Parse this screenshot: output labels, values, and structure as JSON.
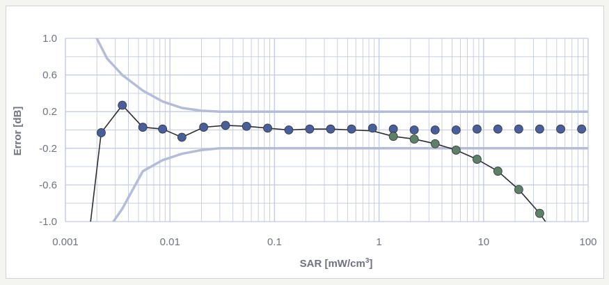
{
  "chart_data": {
    "type": "scatter",
    "title": "",
    "xlabel": "SAR [mW/cm",
    "xlabel_sup": "3",
    "xlabel_end": "]",
    "ylabel": "Error [dB]",
    "xscale": "log",
    "xlim": [
      0.001,
      100
    ],
    "ylim": [
      -1.0,
      1.0
    ],
    "grid": true,
    "legend": "none",
    "xticks": [
      {
        "v": 0.001,
        "label": "0.001"
      },
      {
        "v": 0.01,
        "label": "0.01"
      },
      {
        "v": 0.1,
        "label": "0.1"
      },
      {
        "v": 1,
        "label": "1"
      },
      {
        "v": 10,
        "label": "10"
      },
      {
        "v": 100,
        "label": "100"
      }
    ],
    "yticks": [
      {
        "v": 1.0,
        "label": "1.0"
      },
      {
        "v": 0.6,
        "label": "0.6"
      },
      {
        "v": 0.2,
        "label": "0.2"
      },
      {
        "v": -0.2,
        "label": "-0.2"
      },
      {
        "v": -0.6,
        "label": "-0.6"
      },
      {
        "v": -1.0,
        "label": "-1.0"
      }
    ],
    "colors": {
      "blue_points": "#4a5e9a",
      "green_points": "#5e8068",
      "line_dark": "#2d2d33",
      "bounds": "#b4bcd8",
      "grid": "#c3cbe0",
      "axis_text": "#6f7380"
    },
    "series": [
      {
        "style": "blue_points",
        "points": [
          [
            0.0022,
            -0.03
          ],
          [
            0.0035,
            0.27
          ],
          [
            0.0055,
            0.03
          ],
          [
            0.0085,
            0.01
          ],
          [
            0.013,
            -0.08
          ],
          [
            0.021,
            0.03
          ],
          [
            0.034,
            0.05
          ],
          [
            0.054,
            0.04
          ],
          [
            0.086,
            0.02
          ],
          [
            0.137,
            0.0
          ],
          [
            0.217,
            0.01
          ],
          [
            0.344,
            0.01
          ],
          [
            0.546,
            0.01
          ],
          [
            0.866,
            0.02
          ],
          [
            1.37,
            0.01
          ],
          [
            2.17,
            0.0
          ],
          [
            3.44,
            0.0
          ],
          [
            5.46,
            0.0
          ],
          [
            8.66,
            0.01
          ],
          [
            13.7,
            0.01
          ],
          [
            21.7,
            0.01
          ],
          [
            34.4,
            0.01
          ],
          [
            54.6,
            0.01
          ],
          [
            86.6,
            0.01
          ]
        ]
      },
      {
        "style": "green_points",
        "points": [
          [
            1.37,
            -0.07
          ],
          [
            2.17,
            -0.1
          ],
          [
            3.44,
            -0.15
          ],
          [
            5.46,
            -0.22
          ],
          [
            8.66,
            -0.32
          ],
          [
            13.7,
            -0.45
          ],
          [
            21.7,
            -0.65
          ],
          [
            34.4,
            -0.91
          ]
        ]
      },
      {
        "style": "line_dark",
        "points": [
          [
            0.0017,
            -1.1
          ],
          [
            0.0022,
            -0.03
          ],
          [
            0.0035,
            0.27
          ],
          [
            0.0055,
            0.03
          ],
          [
            0.0085,
            0.01
          ],
          [
            0.013,
            -0.08
          ],
          [
            0.021,
            0.03
          ],
          [
            0.034,
            0.05
          ],
          [
            0.054,
            0.04
          ],
          [
            0.086,
            0.02
          ],
          [
            0.137,
            0.0
          ],
          [
            0.217,
            0.01
          ],
          [
            0.344,
            0.01
          ],
          [
            0.546,
            0.0
          ],
          [
            0.866,
            -0.01
          ],
          [
            1.37,
            -0.07
          ],
          [
            2.17,
            -0.1
          ],
          [
            3.44,
            -0.15
          ],
          [
            5.46,
            -0.22
          ],
          [
            8.66,
            -0.32
          ],
          [
            13.7,
            -0.45
          ],
          [
            21.7,
            -0.65
          ],
          [
            34.4,
            -0.91
          ],
          [
            45,
            -1.1
          ]
        ]
      },
      {
        "style": "bounds",
        "points": [
          [
            0.0018,
            1.1
          ],
          [
            0.0025,
            0.78
          ],
          [
            0.0035,
            0.6
          ],
          [
            0.0055,
            0.43
          ],
          [
            0.0085,
            0.31
          ],
          [
            0.013,
            0.24
          ],
          [
            0.02,
            0.21
          ],
          [
            0.03,
            0.2
          ],
          [
            100,
            0.2
          ]
        ]
      },
      {
        "style": "bounds",
        "points": [
          [
            0.0025,
            -1.1
          ],
          [
            0.0035,
            -0.86
          ],
          [
            0.0055,
            -0.45
          ],
          [
            0.0085,
            -0.33
          ],
          [
            0.013,
            -0.26
          ],
          [
            0.02,
            -0.22
          ],
          [
            0.03,
            -0.2
          ],
          [
            100,
            -0.2
          ]
        ]
      }
    ]
  }
}
